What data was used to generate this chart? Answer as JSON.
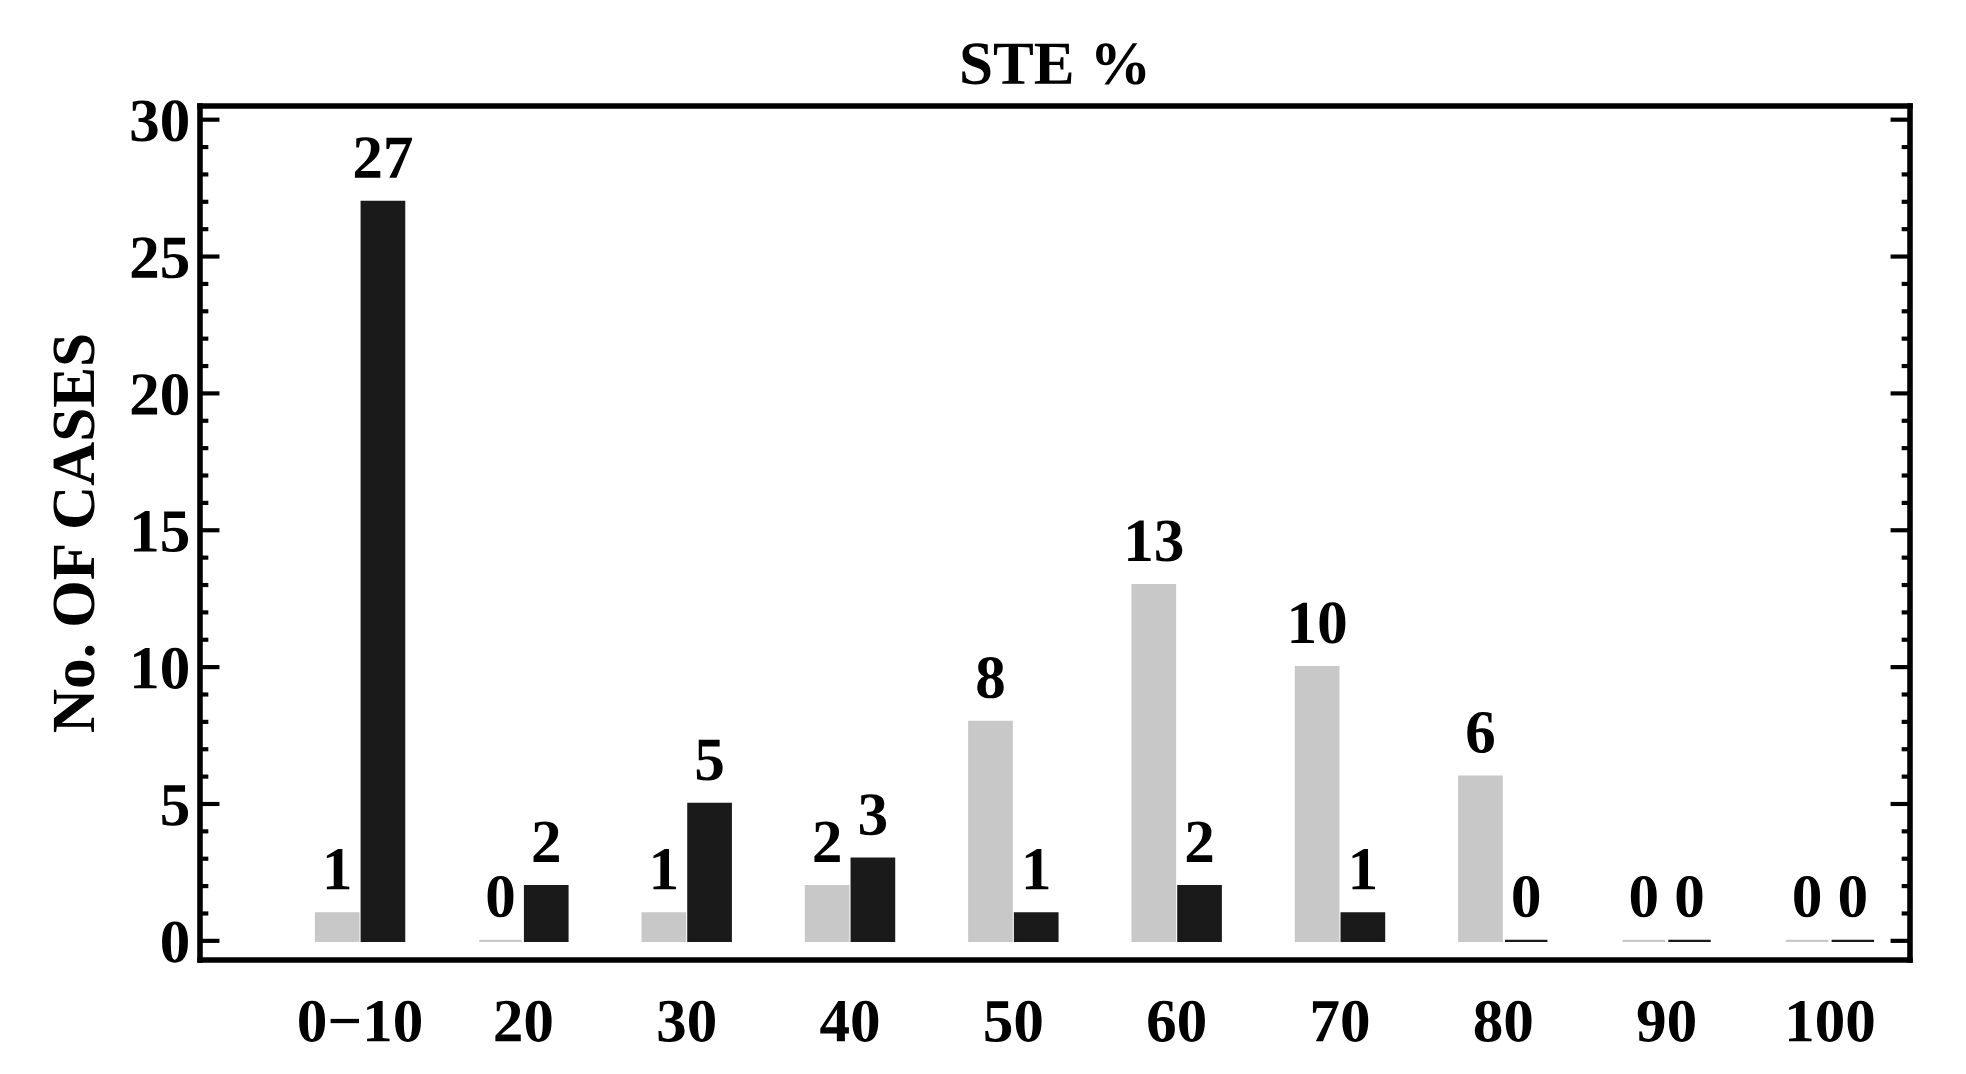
{
  "chart_data": {
    "type": "bar",
    "title": "STE %",
    "ylabel": "No. OF CASES",
    "categories": [
      "0−10",
      "20",
      "30",
      "40",
      "50",
      "60",
      "70",
      "80",
      "90",
      "100"
    ],
    "series": [
      {
        "color": "#c8c8c8",
        "values": [
          1,
          0,
          1,
          2,
          8,
          13,
          10,
          6,
          0,
          0
        ]
      },
      {
        "color": "#1a1a1a",
        "values": [
          27,
          2,
          5,
          3,
          1,
          2,
          1,
          0,
          0,
          0
        ]
      }
    ],
    "ylim": [
      -0.7,
      30.5
    ],
    "yticks": [
      0,
      5,
      10,
      15,
      20,
      25,
      30
    ],
    "data_labels": true,
    "grid": false,
    "legend": false
  }
}
